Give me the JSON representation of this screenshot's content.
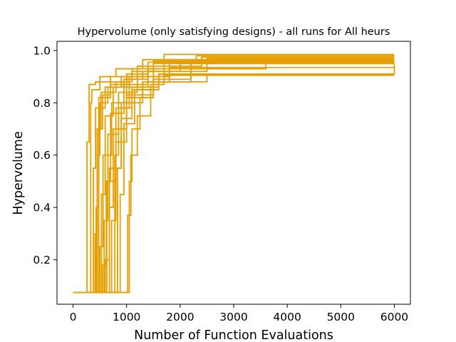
{
  "chart_data": {
    "type": "line",
    "title": "Hypervolume (only satisfying designs) - all runs for All heurs",
    "xlabel": "Number of Function Evaluations",
    "ylabel": "Hypervolume",
    "xlim": [
      -300,
      6300
    ],
    "ylim": [
      0.03,
      1.035
    ],
    "x_ticks": [
      0,
      1000,
      2000,
      3000,
      4000,
      5000,
      6000
    ],
    "y_ticks": [
      0.2,
      0.4,
      0.6,
      0.8,
      1.0
    ],
    "x_tick_labels": [
      "0",
      "1000",
      "2000",
      "3000",
      "4000",
      "5000",
      "6000"
    ],
    "y_tick_labels": [
      "0.2",
      "0.4",
      "0.6",
      "0.8",
      "1.0"
    ],
    "grid": false,
    "legend": "none",
    "line_color": "#E69F00",
    "series": [
      {
        "x": [
          0,
          230,
          260,
          300,
          420,
          700,
          1100,
          1500,
          6000
        ],
        "y": [
          0.075,
          0.075,
          0.65,
          0.87,
          0.88,
          0.9,
          0.93,
          0.96,
          0.96
        ]
      },
      {
        "x": [
          0,
          300,
          330,
          350,
          500,
          800,
          1300,
          6000
        ],
        "y": [
          0.075,
          0.075,
          0.8,
          0.85,
          0.9,
          0.93,
          0.965,
          0.965
        ]
      },
      {
        "x": [
          0,
          350,
          380,
          420,
          600,
          900,
          1200,
          1700,
          6000
        ],
        "y": [
          0.075,
          0.075,
          0.55,
          0.78,
          0.86,
          0.9,
          0.94,
          0.985,
          0.985
        ]
      },
      {
        "x": [
          0,
          380,
          410,
          450,
          520,
          800,
          1100,
          1500,
          6000
        ],
        "y": [
          0.075,
          0.075,
          0.3,
          0.7,
          0.84,
          0.88,
          0.92,
          0.95,
          0.95
        ]
      },
      {
        "x": [
          0,
          400,
          430,
          480,
          700,
          1000,
          1400,
          2300,
          6000
        ],
        "y": [
          0.075,
          0.075,
          0.4,
          0.82,
          0.88,
          0.91,
          0.955,
          0.98,
          0.98
        ]
      },
      {
        "x": [
          0,
          430,
          450,
          500,
          650,
          950,
          1300,
          1800,
          2600,
          6000
        ],
        "y": [
          0.075,
          0.075,
          0.6,
          0.8,
          0.86,
          0.89,
          0.92,
          0.95,
          0.97,
          0.97
        ]
      },
      {
        "x": [
          0,
          450,
          480,
          550,
          700,
          1000,
          1600,
          6000
        ],
        "y": [
          0.075,
          0.075,
          0.7,
          0.83,
          0.87,
          0.9,
          0.91,
          0.91
        ]
      },
      {
        "x": [
          0,
          480,
          500,
          560,
          720,
          1000,
          1400,
          3600,
          6000
        ],
        "y": [
          0.075,
          0.075,
          0.25,
          0.6,
          0.8,
          0.89,
          0.93,
          0.96,
          0.96
        ]
      },
      {
        "x": [
          0,
          500,
          530,
          600,
          750,
          1050,
          1500,
          2000,
          6000
        ],
        "y": [
          0.075,
          0.075,
          0.45,
          0.75,
          0.86,
          0.9,
          0.93,
          0.955,
          0.955
        ]
      },
      {
        "x": [
          0,
          520,
          550,
          620,
          800,
          1100,
          1600,
          6000
        ],
        "y": [
          0.075,
          0.075,
          0.18,
          0.5,
          0.78,
          0.86,
          0.91,
          0.91
        ]
      },
      {
        "x": [
          0,
          550,
          580,
          650,
          850,
          1200,
          1700,
          2400,
          6000
        ],
        "y": [
          0.075,
          0.075,
          0.35,
          0.68,
          0.84,
          0.9,
          0.94,
          0.975,
          0.975
        ]
      },
      {
        "x": [
          0,
          580,
          600,
          680,
          900,
          1300,
          2200,
          6000
        ],
        "y": [
          0.075,
          0.075,
          0.2,
          0.55,
          0.8,
          0.88,
          0.91,
          0.91
        ]
      },
      {
        "x": [
          0,
          600,
          630,
          700,
          950,
          1400,
          2000,
          6000
        ],
        "y": [
          0.075,
          0.075,
          0.5,
          0.76,
          0.87,
          0.92,
          0.95,
          0.95
        ]
      },
      {
        "x": [
          0,
          650,
          680,
          750,
          1000,
          1500,
          2200,
          6000
        ],
        "y": [
          0.075,
          0.075,
          0.4,
          0.7,
          0.83,
          0.89,
          0.96,
          0.96
        ]
      },
      {
        "x": [
          0,
          700,
          720,
          800,
          1000,
          1300,
          1800,
          5700,
          6000
        ],
        "y": [
          0.075,
          0.075,
          0.35,
          0.65,
          0.82,
          0.88,
          0.91,
          0.91,
          0.95
        ]
      },
      {
        "x": [
          0,
          750,
          780,
          850,
          1050,
          1400,
          2500,
          6000
        ],
        "y": [
          0.075,
          0.075,
          0.6,
          0.78,
          0.86,
          0.92,
          0.97,
          0.97
        ]
      },
      {
        "x": [
          0,
          800,
          830,
          900,
          1100,
          1500,
          2500,
          6000
        ],
        "y": [
          0.075,
          0.075,
          0.55,
          0.74,
          0.85,
          0.88,
          0.91,
          0.91
        ]
      },
      {
        "x": [
          0,
          850,
          880,
          950,
          1150,
          1600,
          6000
        ],
        "y": [
          0.075,
          0.075,
          0.45,
          0.72,
          0.85,
          0.91,
          0.91
        ]
      },
      {
        "x": [
          0,
          1000,
          1020,
          1080,
          1200,
          1450,
          1700,
          6000
        ],
        "y": [
          0.075,
          0.075,
          0.37,
          0.6,
          0.75,
          0.87,
          0.905,
          0.905
        ]
      },
      {
        "x": [
          0,
          1020,
          1050,
          1100,
          1250,
          1500,
          1800,
          6000
        ],
        "y": [
          0.075,
          0.075,
          0.5,
          0.7,
          0.82,
          0.9,
          0.935,
          0.935
        ]
      }
    ]
  }
}
